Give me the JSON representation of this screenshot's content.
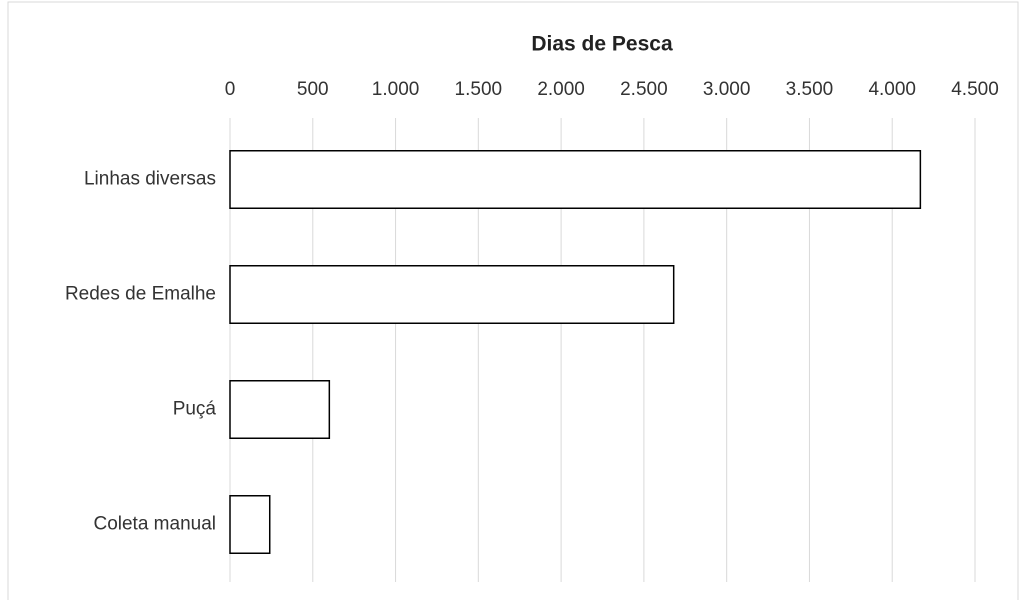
{
  "chart_data": {
    "type": "bar",
    "orientation": "horizontal",
    "title": "Dias de Pesca",
    "categories": [
      "Linhas diversas",
      "Redes de Emalhe",
      "Puçá",
      "Coleta manual"
    ],
    "values": [
      4170,
      2680,
      600,
      240
    ],
    "color": "#ffffff",
    "edge_color": "#000000",
    "xlim": [
      0,
      4500
    ],
    "xticks": [
      0,
      500,
      {
        "value": 1000,
        "label": "1.000"
      },
      {
        "value": 1500,
        "label": "1.500"
      },
      {
        "value": 2000,
        "label": "2.000"
      },
      {
        "value": 2500,
        "label": "2.500"
      },
      {
        "value": 3000,
        "label": "3.000"
      },
      {
        "value": 3500,
        "label": "3.500"
      },
      {
        "value": 4000,
        "label": "4.000"
      },
      {
        "value": 4500,
        "label": "4.500"
      }
    ],
    "grid": true
  }
}
